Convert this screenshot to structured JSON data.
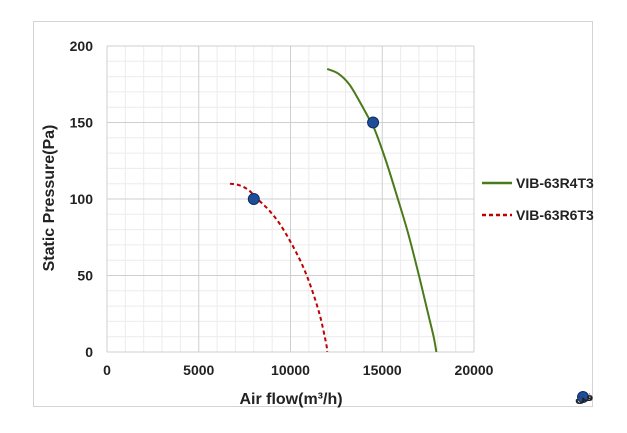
{
  "chart_data": {
    "type": "line",
    "title": "",
    "xlabel": "Air flow(m³/h)",
    "ylabel": "Static Pressure(Pa)",
    "xlim": [
      0,
      20000
    ],
    "ylim": [
      0,
      200
    ],
    "xticks": [
      "0",
      "5000",
      "10000",
      "15000",
      "20000"
    ],
    "yticks": [
      "0",
      "50",
      "100",
      "150",
      "200"
    ],
    "grid": true,
    "legend_position": "right",
    "series": [
      {
        "name": "VIB-63R4T3",
        "color": "#4a7a1a",
        "dash": "solid",
        "x": [
          12000,
          12600,
          13200,
          13800,
          14300,
          14600,
          15200,
          15800,
          16400,
          17000,
          17500,
          17800,
          17950
        ],
        "y": [
          185,
          182,
          175,
          163,
          152,
          145,
          125,
          102,
          78,
          50,
          25,
          10,
          0
        ]
      },
      {
        "name": "VIB-63R6T3",
        "color": "#c00000",
        "dash": "dashed",
        "x": [
          6700,
          7200,
          7700,
          8200,
          8800,
          9400,
          10000,
          10600,
          11100,
          11600,
          11950,
          12000
        ],
        "y": [
          110,
          109,
          106,
          100,
          93,
          84,
          72,
          58,
          43,
          24,
          5,
          0
        ]
      }
    ],
    "markers": {
      "label": "نقطه عملکرد بهینه فن",
      "color": "#1f4e99",
      "points": [
        {
          "x": 14500,
          "y": 150
        },
        {
          "x": 8000,
          "y": 100
        }
      ]
    }
  }
}
